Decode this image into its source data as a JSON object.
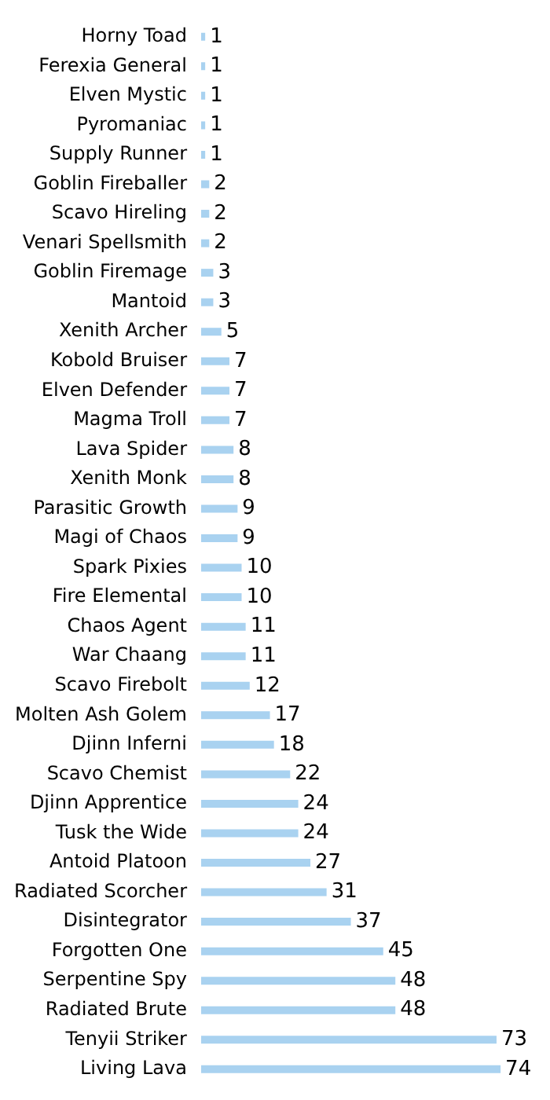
{
  "chart_data": {
    "type": "bar",
    "orientation": "horizontal",
    "data_labels": true,
    "color": "#a9d2f0",
    "categories": [
      "Horny Toad",
      "Ferexia General",
      "Elven Mystic",
      "Pyromaniac",
      "Supply Runner",
      "Goblin Fireballer",
      "Scavo Hireling",
      "Venari Spellsmith",
      "Goblin Firemage",
      "Mantoid",
      "Xenith Archer",
      "Kobold Bruiser",
      "Elven Defender",
      "Magma Troll",
      "Lava Spider",
      "Xenith Monk",
      "Parasitic Growth",
      "Magi of Chaos",
      "Spark Pixies",
      "Fire Elemental",
      "Chaos Agent",
      "War Chaang",
      "Scavo Firebolt",
      "Molten Ash Golem",
      "Djinn Inferni",
      "Scavo Chemist",
      "Djinn Apprentice",
      "Tusk the Wide",
      "Antoid Platoon",
      "Radiated Scorcher",
      "Disintegrator",
      "Forgotten One",
      "Serpentine Spy",
      "Radiated Brute",
      "Tenyii Striker",
      "Living Lava"
    ],
    "values": [
      1,
      1,
      1,
      1,
      1,
      2,
      2,
      2,
      3,
      3,
      5,
      7,
      7,
      7,
      8,
      8,
      9,
      9,
      10,
      10,
      11,
      11,
      12,
      17,
      18,
      22,
      24,
      24,
      27,
      31,
      37,
      45,
      48,
      48,
      73,
      74
    ],
    "grid": false,
    "legend": false
  }
}
